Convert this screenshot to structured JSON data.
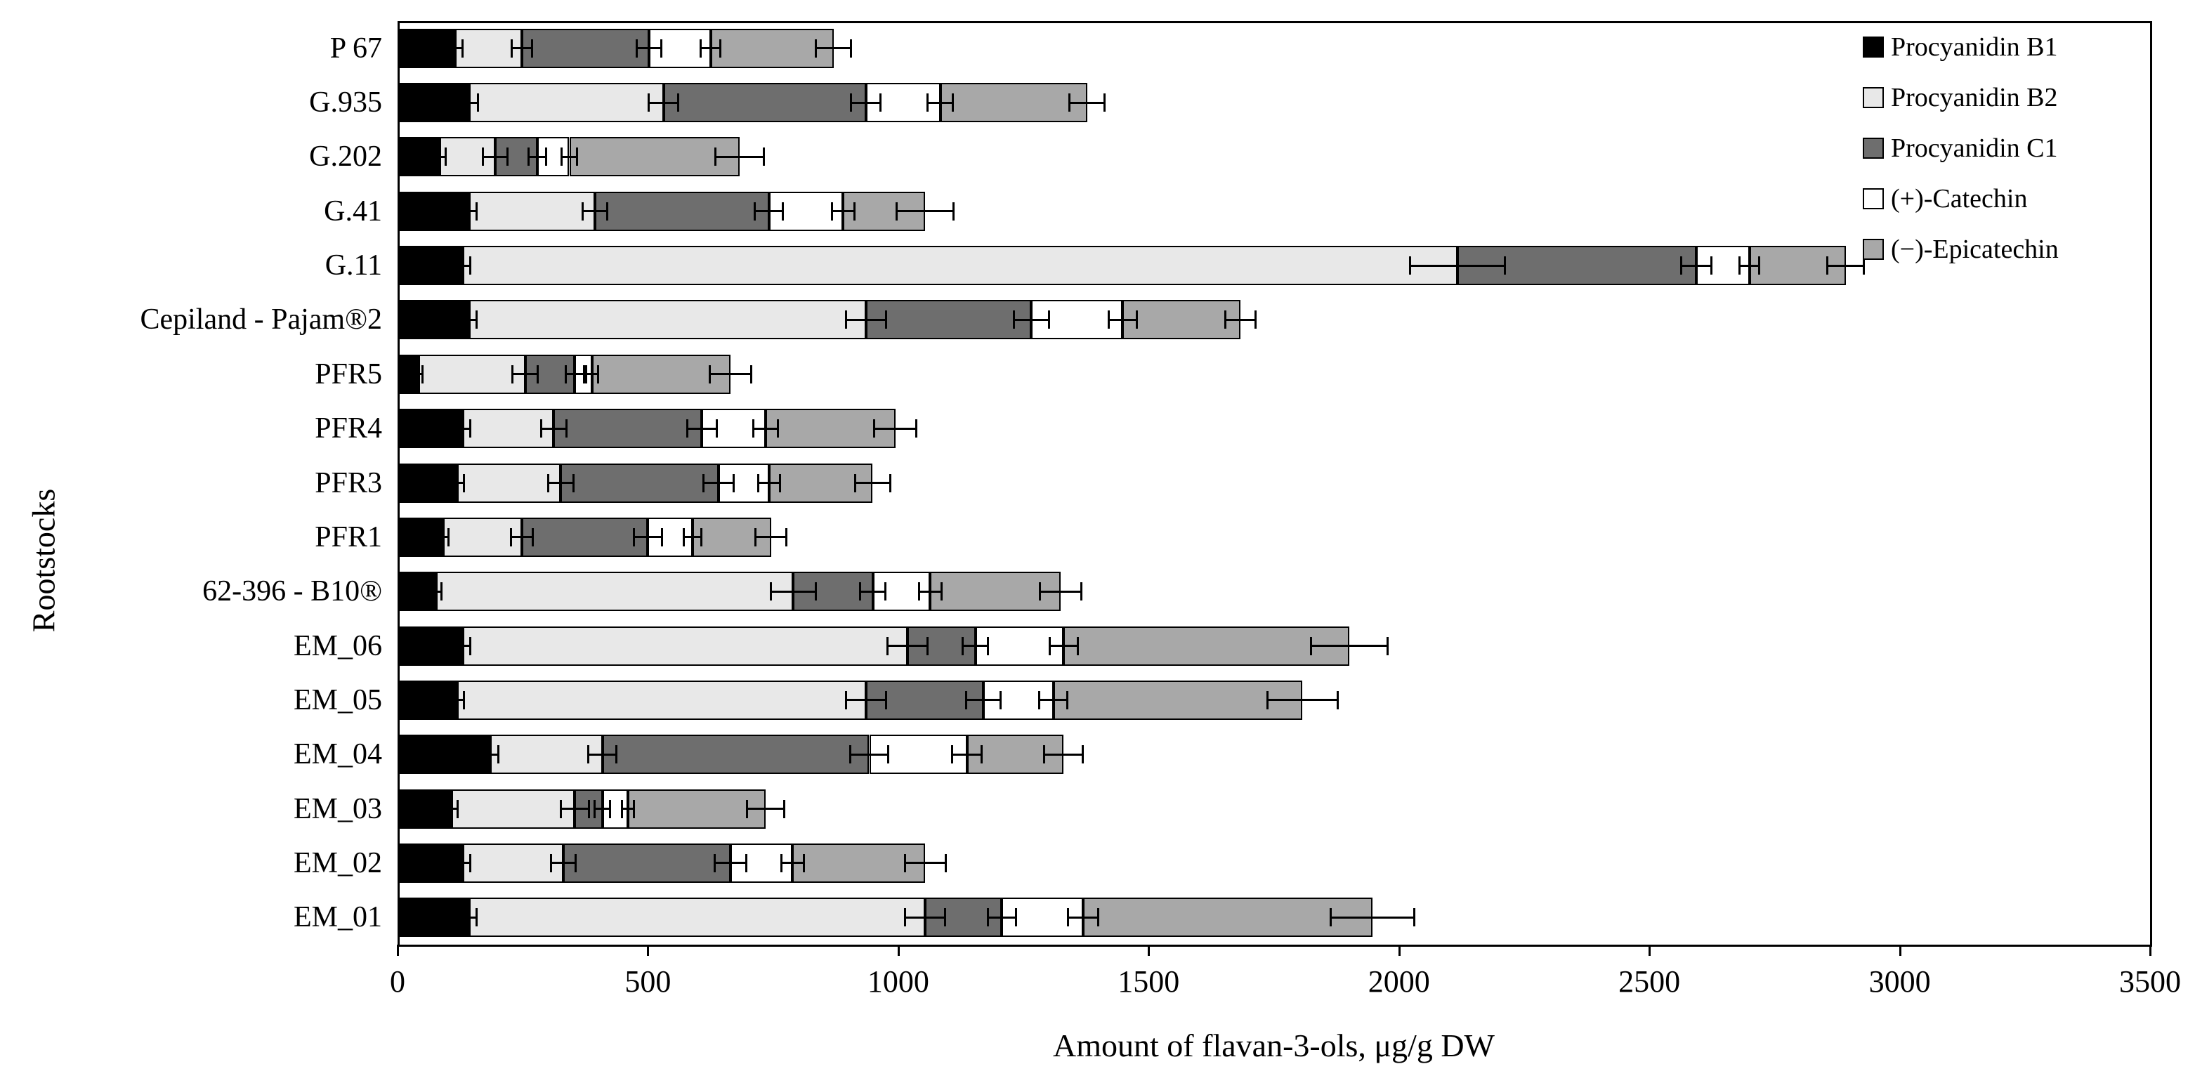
{
  "chart_data": {
    "type": "bar",
    "orientation": "horizontal",
    "stacked": true,
    "title": "",
    "xlabel": "Amount of flavan-3-ols,  μg/g DW",
    "ylabel": "Rootstocks",
    "xlim": [
      0,
      3500
    ],
    "xtick_labels": [
      "0",
      "500",
      "1000",
      "1500",
      "2000",
      "2500",
      "3000",
      "3500"
    ],
    "xtick_values": [
      0,
      500,
      1000,
      1500,
      2000,
      2500,
      3000,
      3500
    ],
    "grid": "off",
    "legend_position": "inside-top-right",
    "categories_top_to_bottom": [
      "P 67",
      "G.935",
      "G.202",
      "G.41",
      "G.11",
      "Cepiland - Pajam®2",
      "PFR5",
      "PFR4",
      "PFR3",
      "PFR1",
      "62-396 - B10®",
      "EM_06",
      "EM_05",
      "EM_04",
      "EM_03",
      "EM_02",
      "EM_01"
    ],
    "series": [
      {
        "name": "Procyanidin B1",
        "color": "#000000",
        "values": [
          115,
          143,
          84,
          143,
          131,
          143,
          42,
          131,
          119,
          91,
          77,
          131,
          119,
          185,
          108,
          131,
          143
        ],
        "errors": [
          15,
          18,
          12,
          15,
          14,
          15,
          8,
          14,
          13,
          11,
          10,
          14,
          13,
          16,
          12,
          14,
          15
        ]
      },
      {
        "name": "Procyanidin B2",
        "color": "#e8e8e8",
        "values": [
          133,
          388,
          111,
          251,
          1986,
          792,
          213,
          181,
          207,
          157,
          713,
          887,
          816,
          224,
          246,
          200,
          911
        ],
        "errors": [
          20,
          30,
          25,
          25,
          95,
          40,
          25,
          25,
          25,
          22,
          45,
          40,
          40,
          28,
          28,
          25,
          40
        ]
      },
      {
        "name": "Procyanidin C1",
        "color": "#6e6e6e",
        "values": [
          254,
          404,
          84,
          348,
          477,
          331,
          99,
          296,
          315,
          252,
          159,
          136,
          235,
          533,
          55,
          334,
          153
        ],
        "errors": [
          25,
          30,
          18,
          28,
          30,
          35,
          18,
          30,
          30,
          28,
          25,
          25,
          35,
          38,
          15,
          32,
          28
        ]
      },
      {
        "name": "(+)-Catechin",
        "color": "#ffffff",
        "values": [
          123,
          149,
          64,
          148,
          106,
          182,
          35,
          127,
          101,
          89,
          115,
          176,
          140,
          195,
          51,
          124,
          162
        ],
        "errors": [
          20,
          25,
          15,
          22,
          20,
          28,
          12,
          25,
          22,
          18,
          22,
          28,
          28,
          30,
          12,
          22,
          30
        ]
      },
      {
        "name": "(−)-Epicatechin",
        "color": "#a8a8a8",
        "values": [
          246,
          293,
          340,
          164,
          192,
          235,
          276,
          259,
          207,
          157,
          260,
          571,
          497,
          193,
          275,
          265,
          578
        ],
        "errors": [
          35,
          35,
          48,
          57,
          37,
          30,
          42,
          42,
          35,
          31,
          41,
          76,
          70,
          39,
          37,
          41,
          83
        ]
      }
    ]
  }
}
